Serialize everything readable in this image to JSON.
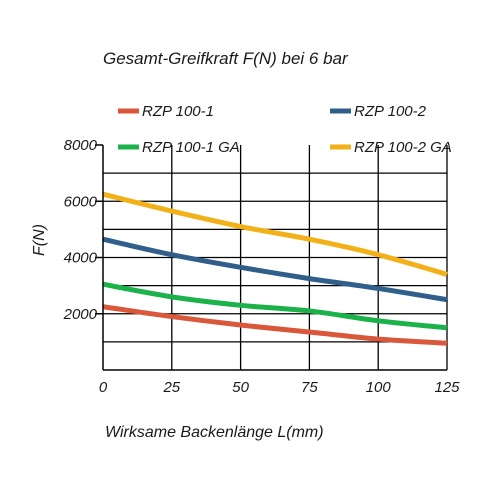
{
  "chart_data": {
    "type": "line",
    "title": "Gesamt-Greifkraft F(N) bei 6 bar",
    "xlabel": "Wirksame Backenlänge L(mm)",
    "ylabel": "F(N)",
    "xlim": [
      0,
      125
    ],
    "ylim": [
      0,
      8000
    ],
    "x_ticks": [
      0,
      25,
      50,
      75,
      100,
      125
    ],
    "x_tick_labels": [
      "0",
      "25",
      "50",
      "75",
      "100",
      "125"
    ],
    "y_ticks": [
      2000,
      4000,
      6000,
      8000
    ],
    "y_tick_labels": [
      "2000",
      "4000",
      "6000",
      "8000"
    ],
    "grid": "horizontal lines at 1000 intervals, vertical lines at 25 intervals",
    "legend_position": "top",
    "x": [
      0,
      25,
      50,
      75,
      100,
      125
    ],
    "series": [
      {
        "name": "RZP 100-1",
        "color": "#d9573a",
        "values": [
          2250,
          1900,
          1600,
          1350,
          1100,
          950
        ]
      },
      {
        "name": "RZP 100-2",
        "color": "#2f5f8a",
        "values": [
          4650,
          4100,
          3650,
          3250,
          2900,
          2500
        ]
      },
      {
        "name": "RZP 100-1 GA",
        "color": "#1bb24a",
        "values": [
          3050,
          2600,
          2300,
          2100,
          1750,
          1500
        ]
      },
      {
        "name": "RZP 100-2 GA",
        "color": "#f2b118",
        "values": [
          6250,
          5650,
          5100,
          4650,
          4100,
          3400
        ]
      }
    ]
  }
}
